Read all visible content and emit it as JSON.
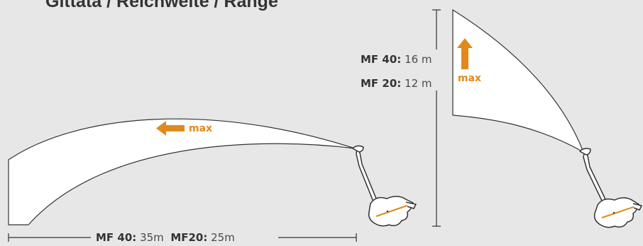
{
  "title": "Gittata / Reichweite / Range",
  "horizontal": {
    "arrow_label": "max",
    "dimension": [
      {
        "model": "MF 40:",
        "value": "35m"
      },
      {
        "model": "MF20:",
        "value": "25m"
      }
    ]
  },
  "vertical": {
    "arrow_label": "max",
    "dimension": [
      {
        "model": "MF 40:",
        "value": "16 m"
      },
      {
        "model": "MF 20:",
        "value": "12 m"
      }
    ]
  },
  "colors": {
    "background": "#e7e7e8",
    "spray_fill": "#ffffff",
    "outline": "#333333",
    "accent": "#e08a1e"
  }
}
